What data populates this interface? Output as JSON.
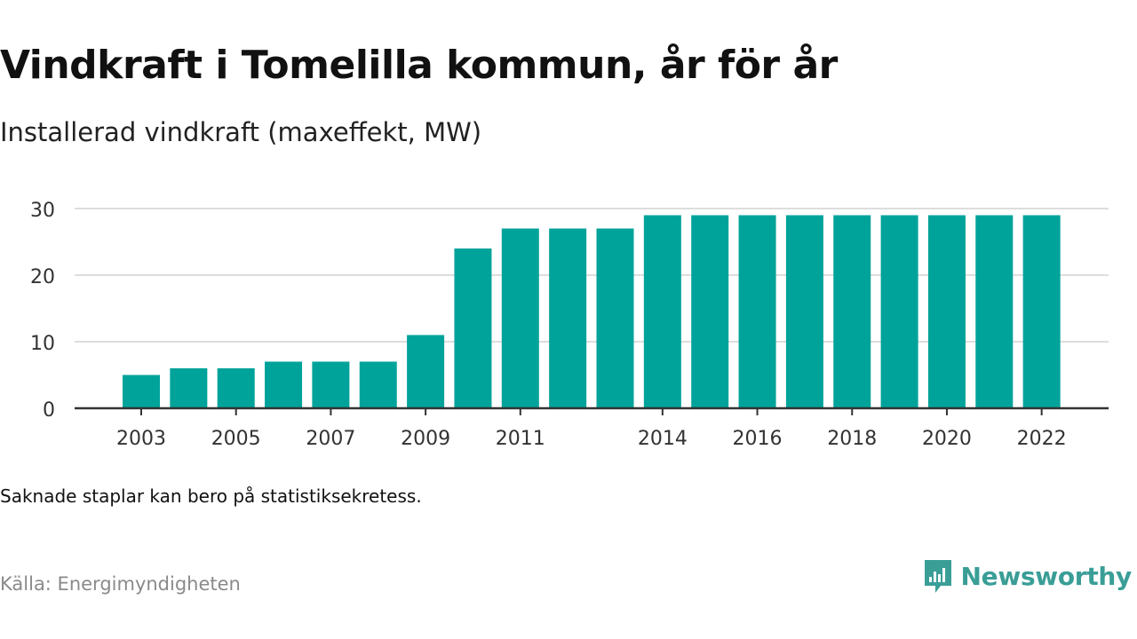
{
  "header": {
    "title": "Vindkraft i Tomelilla kommun, år för år",
    "subtitle": "Installerad vindkraft (maxeffekt, MW)"
  },
  "footer": {
    "note": "Saknade staplar kan bero på statistiksekretess.",
    "source": "Källa: Energimyndigheten",
    "brand": "Newsworthy",
    "brand_icon": "newsworthy-logo-icon"
  },
  "colors": {
    "bar": "#00a39a",
    "gridline": "#dddddd",
    "axis": "#333333",
    "brand": "#3a9e97"
  },
  "chart_data": {
    "type": "bar",
    "categories": [
      "2003",
      "2004",
      "2005",
      "2006",
      "2007",
      "2008",
      "2009",
      "2010",
      "2011",
      "2012",
      "2013",
      "2014",
      "2015",
      "2016",
      "2017",
      "2018",
      "2019",
      "2020",
      "2021",
      "2022"
    ],
    "values": [
      5,
      6,
      6,
      7,
      7,
      7,
      11,
      24,
      27,
      27,
      27,
      29,
      29,
      29,
      29,
      29,
      29,
      29,
      29,
      29
    ],
    "x_tick_labels": [
      "2003",
      "2005",
      "2007",
      "2009",
      "2011",
      "2014",
      "2016",
      "2018",
      "2020",
      "2022"
    ],
    "y_ticks": [
      0,
      10,
      20,
      30
    ],
    "ylim": [
      0,
      30
    ],
    "title": "Vindkraft i Tomelilla kommun, år för år",
    "subtitle": "Installerad vindkraft (maxeffekt, MW)",
    "xlabel": "",
    "ylabel": "",
    "grid": true
  }
}
